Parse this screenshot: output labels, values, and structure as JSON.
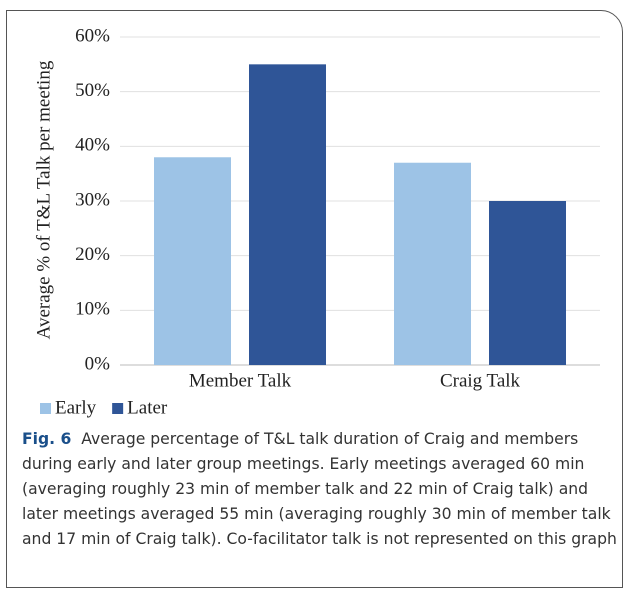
{
  "chart_data": {
    "type": "bar",
    "ylabel": "Average % of T&L  Talk per meeting",
    "categories": [
      "Member Talk",
      "Craig Talk"
    ],
    "series": [
      {
        "name": "Early",
        "color": "#9dc3e6",
        "values": [
          38,
          37
        ]
      },
      {
        "name": "Later",
        "color": "#2f5597",
        "values": [
          55,
          30
        ]
      }
    ],
    "ylim": [
      0,
      60
    ],
    "yticks": [
      {
        "value": 0,
        "label": "0%"
      },
      {
        "value": 10,
        "label": "10%"
      },
      {
        "value": 20,
        "label": "20%"
      },
      {
        "value": 30,
        "label": "30%"
      },
      {
        "value": 40,
        "label": "40%"
      },
      {
        "value": 50,
        "label": "50%"
      },
      {
        "value": 60,
        "label": "60%"
      }
    ],
    "grid": true
  },
  "caption": {
    "label": "Fig. 6",
    "text": "Average percentage of T&L talk duration of Craig and members during early and later group meetings. Early meetings averaged 60 min (averaging roughly 23 min of member talk and 22 min of Craig talk) and later meetings averaged 55 min (averaging roughly 30 min of member talk and 17 min of Craig talk). Co-facilitator talk is not represented on this graph"
  }
}
